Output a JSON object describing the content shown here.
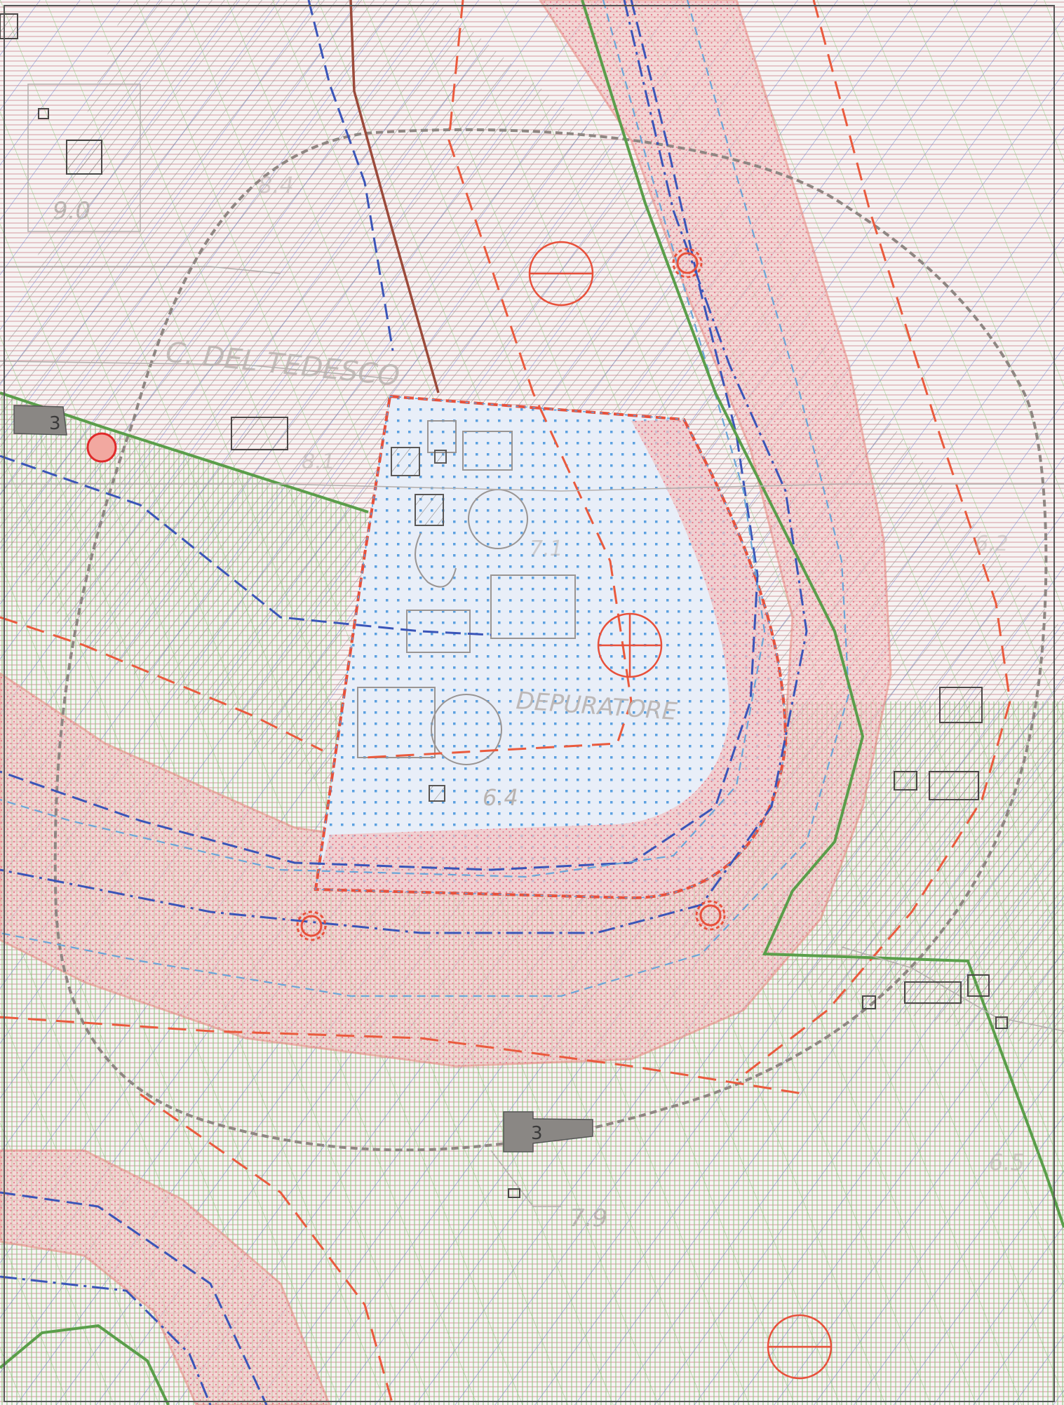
{
  "map": {
    "street_label": "C. DEL TEDESCO",
    "facility_label": "DEPURATORE",
    "elevations": [
      "9.0",
      "8.4",
      "8.1",
      "7.1",
      "6.4",
      "6.2",
      "6.5",
      "7.9"
    ],
    "building_labels": [
      "3",
      "3"
    ],
    "colors": {
      "background": "#f6f4f3",
      "red_hatch": "#d9a7ad",
      "green_hatch": "#7fbf6e",
      "blue_hatch": "#5a6fc4",
      "grey_hatch": "#8d8a88",
      "fascia_pink": "#f2c6c4",
      "fascia_border": "#e88a80",
      "plant_area": "#e8eef8",
      "plant_border": "#e8503a",
      "dash_red": "#ea5a3d",
      "dash_blue": "#3a55b8",
      "boundary_grey": "#8e8682",
      "green_line": "#5a9e4a",
      "brown_line": "#9b4a3a",
      "building_grey": "#8a8784"
    }
  }
}
